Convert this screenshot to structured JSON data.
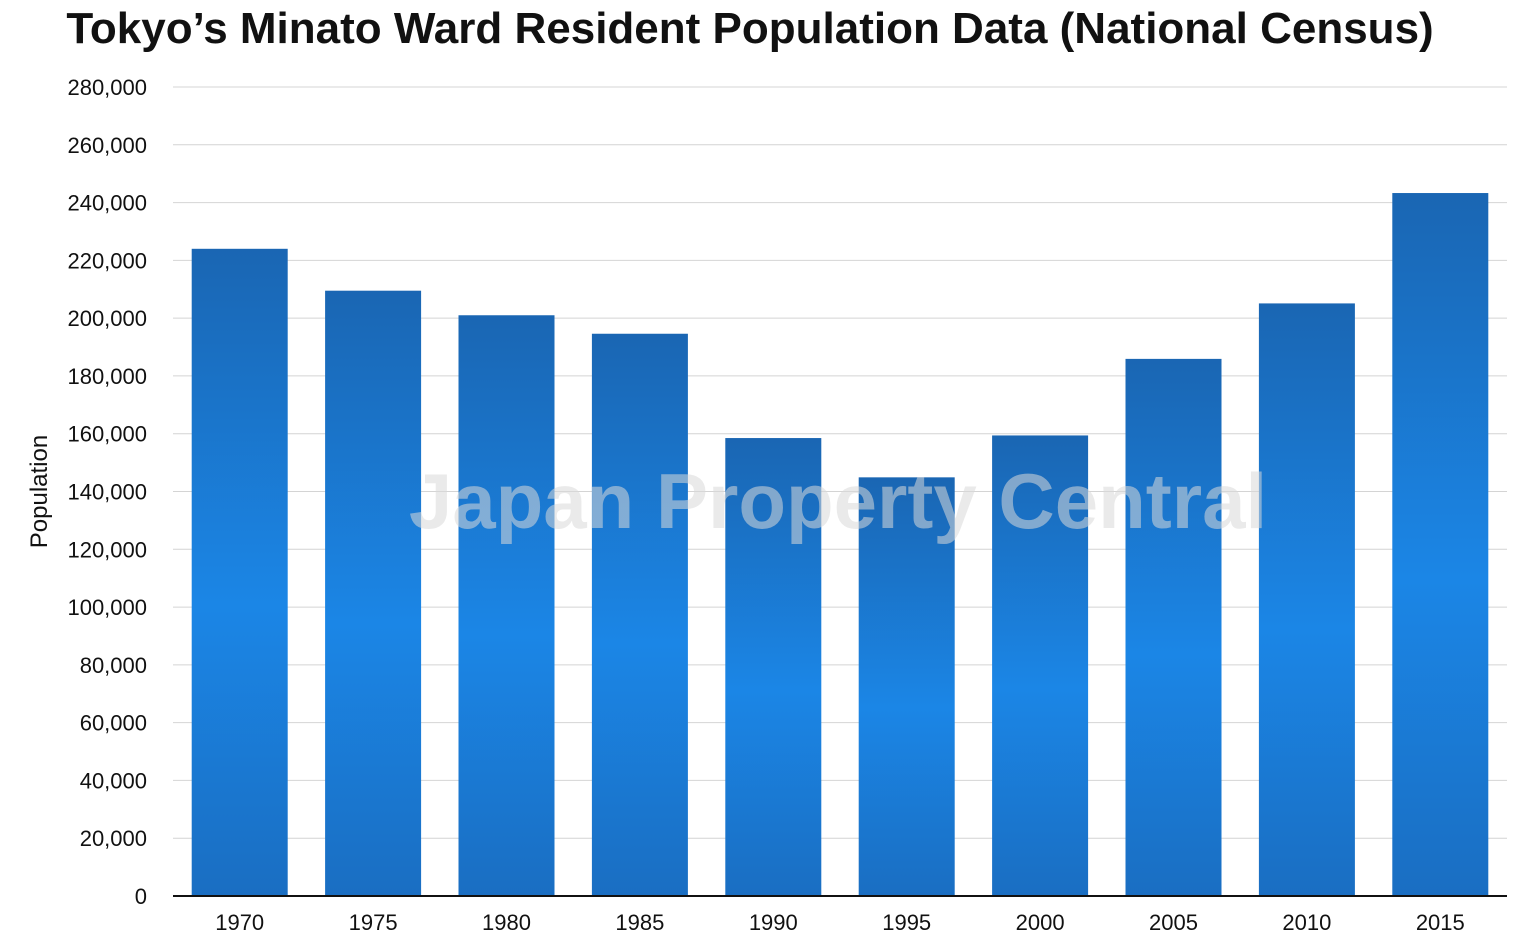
{
  "chart_data": {
    "type": "bar",
    "title": "Tokyo’s Minato Ward Resident Population Data (National Census)",
    "xlabel": "",
    "ylabel": "Population",
    "categories": [
      "1970",
      "1975",
      "1980",
      "1985",
      "1990",
      "1995",
      "2000",
      "2005",
      "2010",
      "2015"
    ],
    "values": [
      224000,
      209500,
      201000,
      194600,
      158500,
      144900,
      159400,
      185900,
      205100,
      243300
    ],
    "ylim": [
      0,
      280000
    ],
    "yticks": [
      "0",
      "20,000",
      "40,000",
      "60,000",
      "80,000",
      "100,000",
      "120,000",
      "140,000",
      "160,000",
      "180,000",
      "200,000",
      "220,000",
      "240,000",
      "260,000",
      "280,000"
    ],
    "grid": true,
    "legend": "none",
    "bar_color_top": "#1a66b3",
    "bar_color_mid": "#1b86e6",
    "bar_color_bottom": "#1a6ec2",
    "watermark": "Japan Property Central"
  }
}
